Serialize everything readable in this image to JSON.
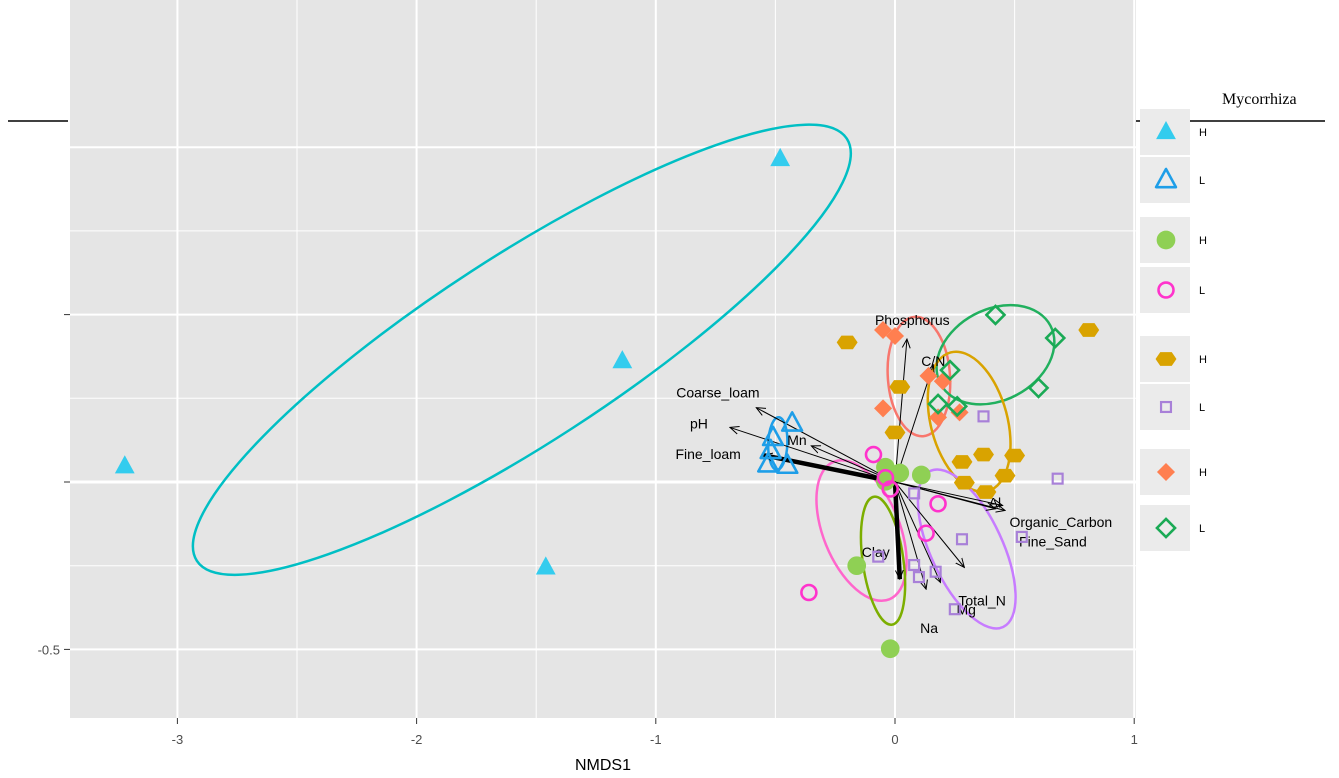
{
  "chart_data": {
    "type": "scatter",
    "title": "",
    "xlabel": "NMDS1",
    "ylabel": "",
    "xlim": [
      -3.45,
      1.0
    ],
    "ylim": [
      -0.71,
      0.98
    ],
    "xticks": [
      -3,
      -2,
      -1,
      0,
      1
    ],
    "xtick_labels": [
      "-3",
      "-2",
      "-1",
      "0",
      "1"
    ],
    "ytick_labels": [
      "-0.5"
    ],
    "grid": true,
    "legend": {
      "title": "Mycorrhiza",
      "placement": "right",
      "entries": [
        {
          "label": "H",
          "shape": "triangle",
          "filled": true,
          "color": "#33CCEE"
        },
        {
          "label": "L",
          "shape": "triangle",
          "filled": false,
          "color": "#1E9EE8"
        },
        {
          "label": "H",
          "shape": "circle",
          "filled": true,
          "color": "#8FD054"
        },
        {
          "label": "L",
          "shape": "circle",
          "filled": false,
          "color": "#FF33CC"
        },
        {
          "label": "H",
          "shape": "hexagon",
          "filled": true,
          "color": "#D9A300"
        },
        {
          "label": "L",
          "shape": "square",
          "filled": false,
          "color": "#A880D8"
        },
        {
          "label": "H",
          "shape": "diamond",
          "filled": true,
          "color": "#FF7F50"
        },
        {
          "label": "L",
          "shape": "diamond",
          "filled": false,
          "color": "#1AAA55"
        }
      ]
    },
    "series": [
      {
        "shape": "triangle",
        "filled": true,
        "color": "#33CCEE",
        "points": [
          [
            -0.48,
            0.965
          ],
          [
            -1.14,
            0.361
          ],
          [
            -3.22,
            0.047
          ],
          [
            -1.46,
            -0.255
          ]
        ]
      },
      {
        "shape": "triangle",
        "filled": false,
        "color": "#1E9EE8",
        "points": [
          [
            -0.43,
            0.175
          ],
          [
            -0.51,
            0.132
          ],
          [
            -0.52,
            0.093
          ],
          [
            -0.53,
            0.053
          ],
          [
            -0.45,
            0.049
          ]
        ]
      },
      {
        "shape": "circle",
        "filled": true,
        "color": "#8FD054",
        "points": [
          [
            -0.04,
            0.044
          ],
          [
            0.02,
            0.027
          ],
          [
            0.11,
            0.021
          ],
          [
            -0.04,
            0.002
          ],
          [
            -0.16,
            -0.25
          ],
          [
            -0.02,
            -0.498
          ]
        ]
      },
      {
        "shape": "circle",
        "filled": false,
        "color": "#FF33CC",
        "points": [
          [
            -0.09,
            0.082
          ],
          [
            -0.04,
            0.013
          ],
          [
            -0.02,
            -0.021
          ],
          [
            0.18,
            -0.065
          ],
          [
            0.13,
            -0.153
          ],
          [
            -0.36,
            -0.33
          ]
        ]
      },
      {
        "shape": "hexagon",
        "filled": true,
        "color": "#D9A300",
        "points": [
          [
            -0.2,
            0.417
          ],
          [
            0.81,
            0.454
          ],
          [
            0.02,
            0.284
          ],
          [
            0.0,
            0.148
          ],
          [
            0.37,
            0.082
          ],
          [
            0.5,
            0.079
          ],
          [
            0.28,
            0.06
          ],
          [
            0.46,
            0.019
          ],
          [
            0.29,
            -0.002
          ],
          [
            0.38,
            -0.03
          ]
        ]
      },
      {
        "shape": "square",
        "filled": false,
        "color": "#A880D8",
        "points": [
          [
            0.37,
            0.196
          ],
          [
            0.68,
            0.01
          ],
          [
            0.08,
            -0.034
          ],
          [
            0.53,
            -0.164
          ],
          [
            0.28,
            -0.171
          ],
          [
            -0.07,
            -0.223
          ],
          [
            0.08,
            -0.248
          ],
          [
            0.17,
            -0.268
          ],
          [
            0.1,
            -0.284
          ],
          [
            0.25,
            -0.38
          ]
        ]
      },
      {
        "shape": "diamond",
        "filled": true,
        "color": "#FF7F50",
        "points": [
          [
            -0.05,
            0.454
          ],
          [
            0.0,
            0.436
          ],
          [
            0.14,
            0.317
          ],
          [
            0.2,
            0.301
          ],
          [
            -0.05,
            0.22
          ],
          [
            0.27,
            0.208
          ],
          [
            0.18,
            0.193
          ]
        ]
      },
      {
        "shape": "diamond",
        "filled": false,
        "color": "#1AAA55",
        "points": [
          [
            0.42,
            0.499
          ],
          [
            0.67,
            0.43
          ],
          [
            0.23,
            0.334
          ],
          [
            0.6,
            0.281
          ],
          [
            0.18,
            0.233
          ],
          [
            0.26,
            0.226
          ]
        ]
      }
    ],
    "ellipses": [
      {
        "color": "#00BFC4",
        "cx": -1.56,
        "cy": 0.395,
        "rx": 1.62,
        "ry": 0.39,
        "angle": 33
      },
      {
        "color": "#1E9EE8",
        "cx": -0.49,
        "cy": 0.115,
        "rx": 0.11,
        "ry": 0.04,
        "angle": 88
      },
      {
        "color": "#F8766D",
        "cx": 0.1,
        "cy": 0.315,
        "rx": 0.25,
        "ry": 0.13,
        "angle": -86
      },
      {
        "color": "#21B05E",
        "cx": 0.42,
        "cy": 0.38,
        "rx": 0.19,
        "ry": 0.26,
        "angle": -62
      },
      {
        "color": "#D9A300",
        "cx": 0.31,
        "cy": 0.18,
        "rx": 0.3,
        "ry": 0.16,
        "angle": -75
      },
      {
        "color": "#FF66CC",
        "cx": -0.14,
        "cy": -0.145,
        "rx": 0.31,
        "ry": 0.16,
        "angle": 112
      },
      {
        "color": "#7CAE00",
        "cx": -0.05,
        "cy": -0.235,
        "rx": 0.27,
        "ry": 0.085,
        "angle": 98
      },
      {
        "color": "#C77CFF",
        "cx": 0.3,
        "cy": -0.2,
        "rx": 0.36,
        "ry": 0.15,
        "angle": 115
      }
    ],
    "vectors": [
      {
        "label": "Phosphorus",
        "x": 0.05,
        "y": 0.427
      },
      {
        "label": "C/N",
        "x": 0.16,
        "y": 0.35
      },
      {
        "label": "Coarse_loam",
        "x": -0.58,
        "y": 0.222
      },
      {
        "label": "pH",
        "x": -0.69,
        "y": 0.163
      },
      {
        "label": "Mn",
        "x": -0.35,
        "y": 0.108
      },
      {
        "label": "Fine_loam",
        "x": -0.55,
        "y": 0.08,
        "bold": true
      },
      {
        "label": "Clay",
        "x": 0.02,
        "y": -0.29,
        "bold": true
      },
      {
        "label": "Al",
        "x": 0.45,
        "y": -0.07
      },
      {
        "label": "Organic_Carbon",
        "x": 0.42,
        "y": -0.08
      },
      {
        "label": "Fine_Sand",
        "x": 0.46,
        "y": -0.085
      },
      {
        "label": "Total_N",
        "x": 0.29,
        "y": -0.255
      },
      {
        "label": "Mg",
        "x": 0.19,
        "y": -0.3
      },
      {
        "label": "Na",
        "x": 0.13,
        "y": -0.32
      }
    ]
  }
}
